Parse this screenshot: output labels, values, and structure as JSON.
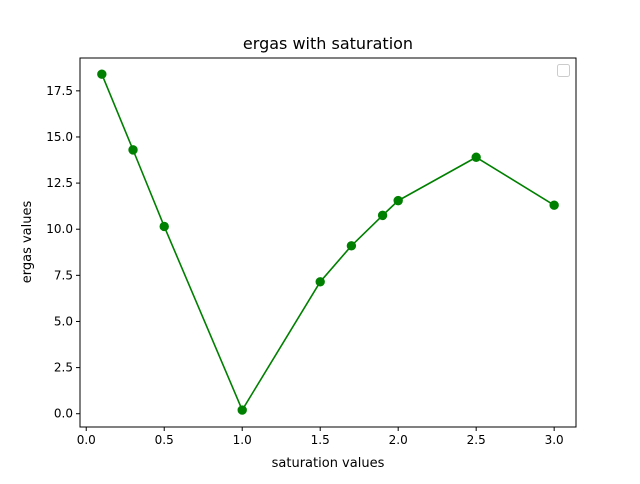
{
  "chart_data": {
    "type": "line",
    "title": "ergas with saturation",
    "xlabel": "saturation values",
    "ylabel": "ergas values",
    "xlim": [
      -0.04,
      3.14
    ],
    "ylim": [
      -0.72,
      19.28
    ],
    "xticks": [
      0.0,
      0.5,
      1.0,
      1.5,
      2.0,
      2.5,
      3.0
    ],
    "xtick_labels": [
      "0.0",
      "0.5",
      "1.0",
      "1.5",
      "2.0",
      "2.5",
      "3.0"
    ],
    "yticks": [
      0.0,
      2.5,
      5.0,
      7.5,
      10.0,
      12.5,
      15.0,
      17.5
    ],
    "ytick_labels": [
      "0.0",
      "2.5",
      "5.0",
      "7.5",
      "10.0",
      "12.5",
      "15.0",
      "17.5"
    ],
    "grid": false,
    "legend": {
      "placement": "top-right",
      "entries": []
    },
    "series": [
      {
        "color": "#008000",
        "marker": "circle",
        "x": [
          0.1,
          0.3,
          0.5,
          1.0,
          1.5,
          1.7,
          1.9,
          2.0,
          2.5,
          3.0
        ],
        "y": [
          18.4,
          14.3,
          10.15,
          0.2,
          7.15,
          9.1,
          10.75,
          11.55,
          13.9,
          11.3
        ]
      }
    ]
  }
}
